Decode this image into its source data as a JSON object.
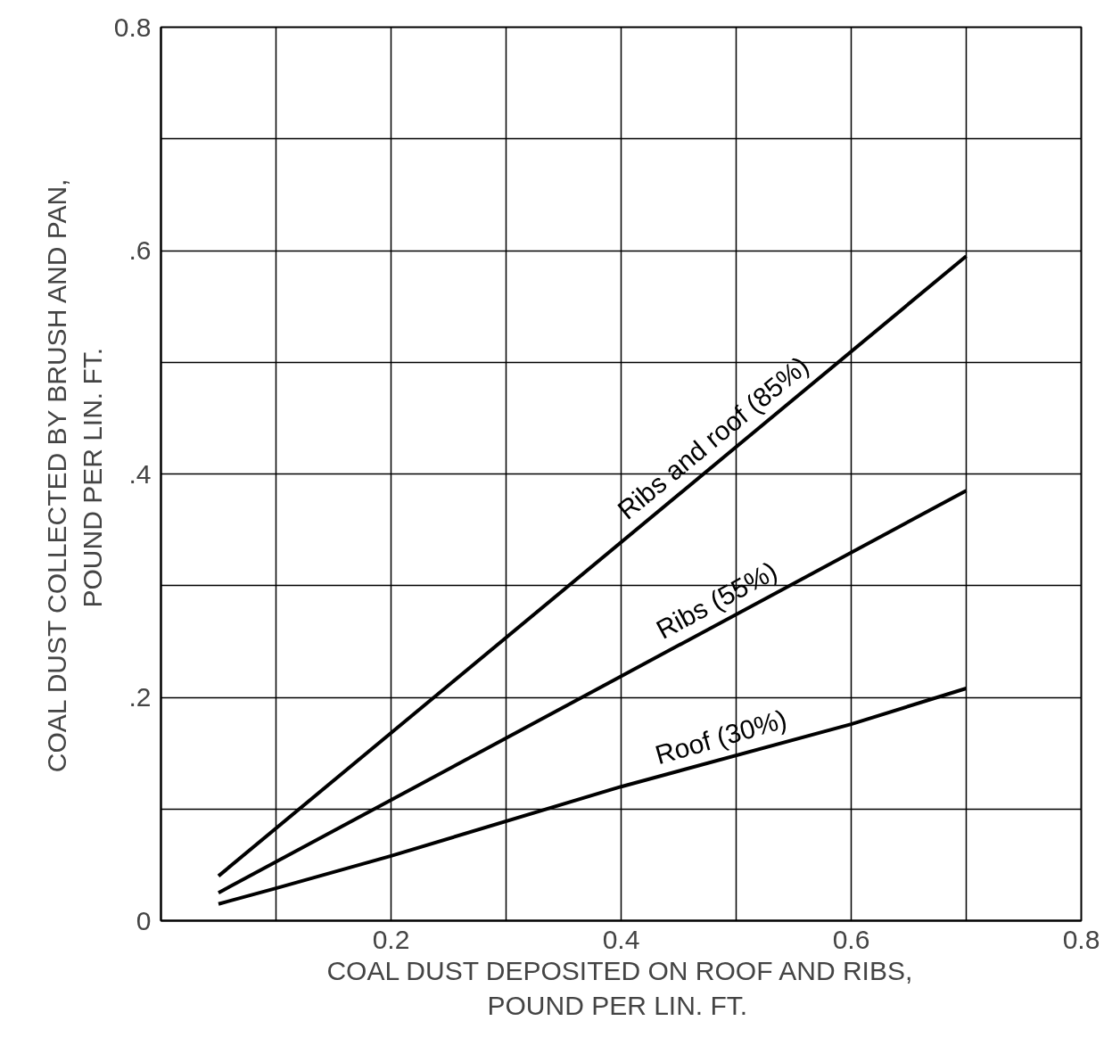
{
  "chart_data": {
    "type": "line",
    "xlabel": "COAL DUST DEPOSITED ON ROOF AND RIBS,\nPOUND  PER LIN. FT.",
    "ylabel": "COAL DUST COLLECTED BY BRUSH AND PAN,\nPOUND  PER LIN. FT.",
    "xlim": [
      0,
      0.8
    ],
    "ylim": [
      0,
      0.8
    ],
    "xticks": [
      {
        "value": 0.1,
        "label": null
      },
      {
        "value": 0.2,
        "label": "0.2"
      },
      {
        "value": 0.3,
        "label": null
      },
      {
        "value": 0.4,
        "label": "0.4"
      },
      {
        "value": 0.5,
        "label": null
      },
      {
        "value": 0.6,
        "label": "0.6"
      },
      {
        "value": 0.7,
        "label": null
      },
      {
        "value": 0.8,
        "label": "0.8"
      }
    ],
    "yticks": [
      {
        "value": 0,
        "label": "0"
      },
      {
        "value": 0.1,
        "label": null
      },
      {
        "value": 0.2,
        "label": ".2"
      },
      {
        "value": 0.3,
        "label": null
      },
      {
        "value": 0.4,
        "label": ".4"
      },
      {
        "value": 0.5,
        "label": null
      },
      {
        "value": 0.6,
        "label": ".6"
      },
      {
        "value": 0.7,
        "label": null
      },
      {
        "value": 0.8,
        "label": "0.8"
      }
    ],
    "grid": true,
    "marker": "none",
    "line_style": "solid",
    "series": [
      {
        "name": "Ribs and roof (85%)",
        "color": "#000000",
        "x": [
          0.05,
          0.7
        ],
        "values": [
          0.04,
          0.595
        ]
      },
      {
        "name": "Ribs (55%)",
        "color": "#000000",
        "x": [
          0.05,
          0.7
        ],
        "values": [
          0.025,
          0.385
        ]
      },
      {
        "name": "Roof (30%)",
        "color": "#000000",
        "x": [
          0.05,
          0.1,
          0.2,
          0.4,
          0.6,
          0.7
        ],
        "values": [
          0.015,
          0.029,
          0.058,
          0.12,
          0.176,
          0.208
        ]
      }
    ]
  }
}
